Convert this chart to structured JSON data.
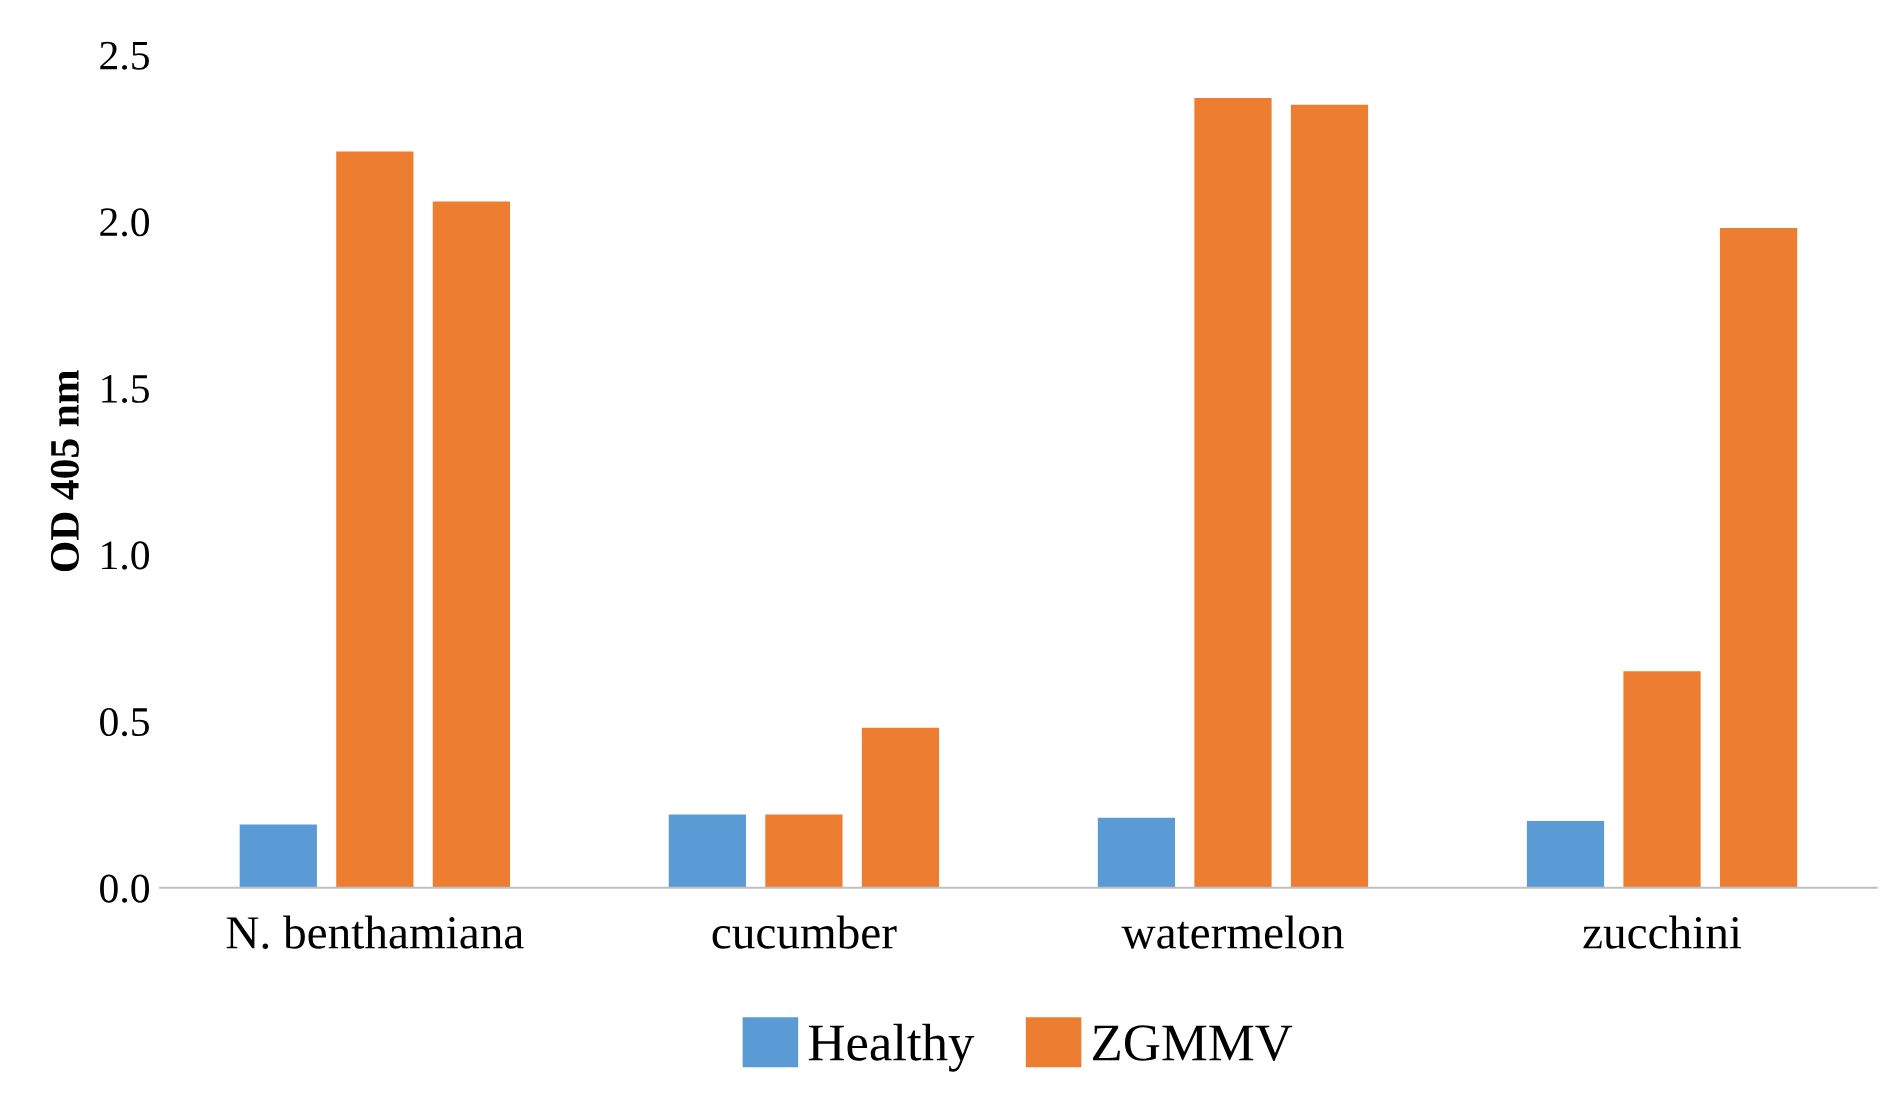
{
  "chart_data": {
    "type": "bar",
    "ylabel": "OD 405 nm",
    "categories": [
      "N. benthamiana",
      "cucumber",
      "watermelon",
      "zucchini"
    ],
    "series": [
      {
        "name": "Healthy",
        "color": "#5b9bd5",
        "values": [
          0.19,
          0.22,
          0.21,
          0.2
        ]
      },
      {
        "name": "ZGMMV",
        "color": "#ed7d31",
        "values": [
          2.21,
          0.22,
          2.37,
          0.65
        ]
      },
      {
        "color": "#ed7d31",
        "values": [
          2.06,
          0.48,
          2.35,
          1.98
        ]
      }
    ],
    "ylim": [
      0,
      2.5
    ],
    "yticks": [
      {
        "value": 0,
        "label": "0.0"
      },
      {
        "value": 0.5,
        "label": "0.5"
      },
      {
        "value": 1,
        "label": "1.0"
      },
      {
        "value": 1.5,
        "label": "1.5"
      },
      {
        "value": 2,
        "label": "2.0"
      },
      {
        "value": 2.5,
        "label": "2.5"
      }
    ],
    "grid": false,
    "legend": "bottom"
  }
}
